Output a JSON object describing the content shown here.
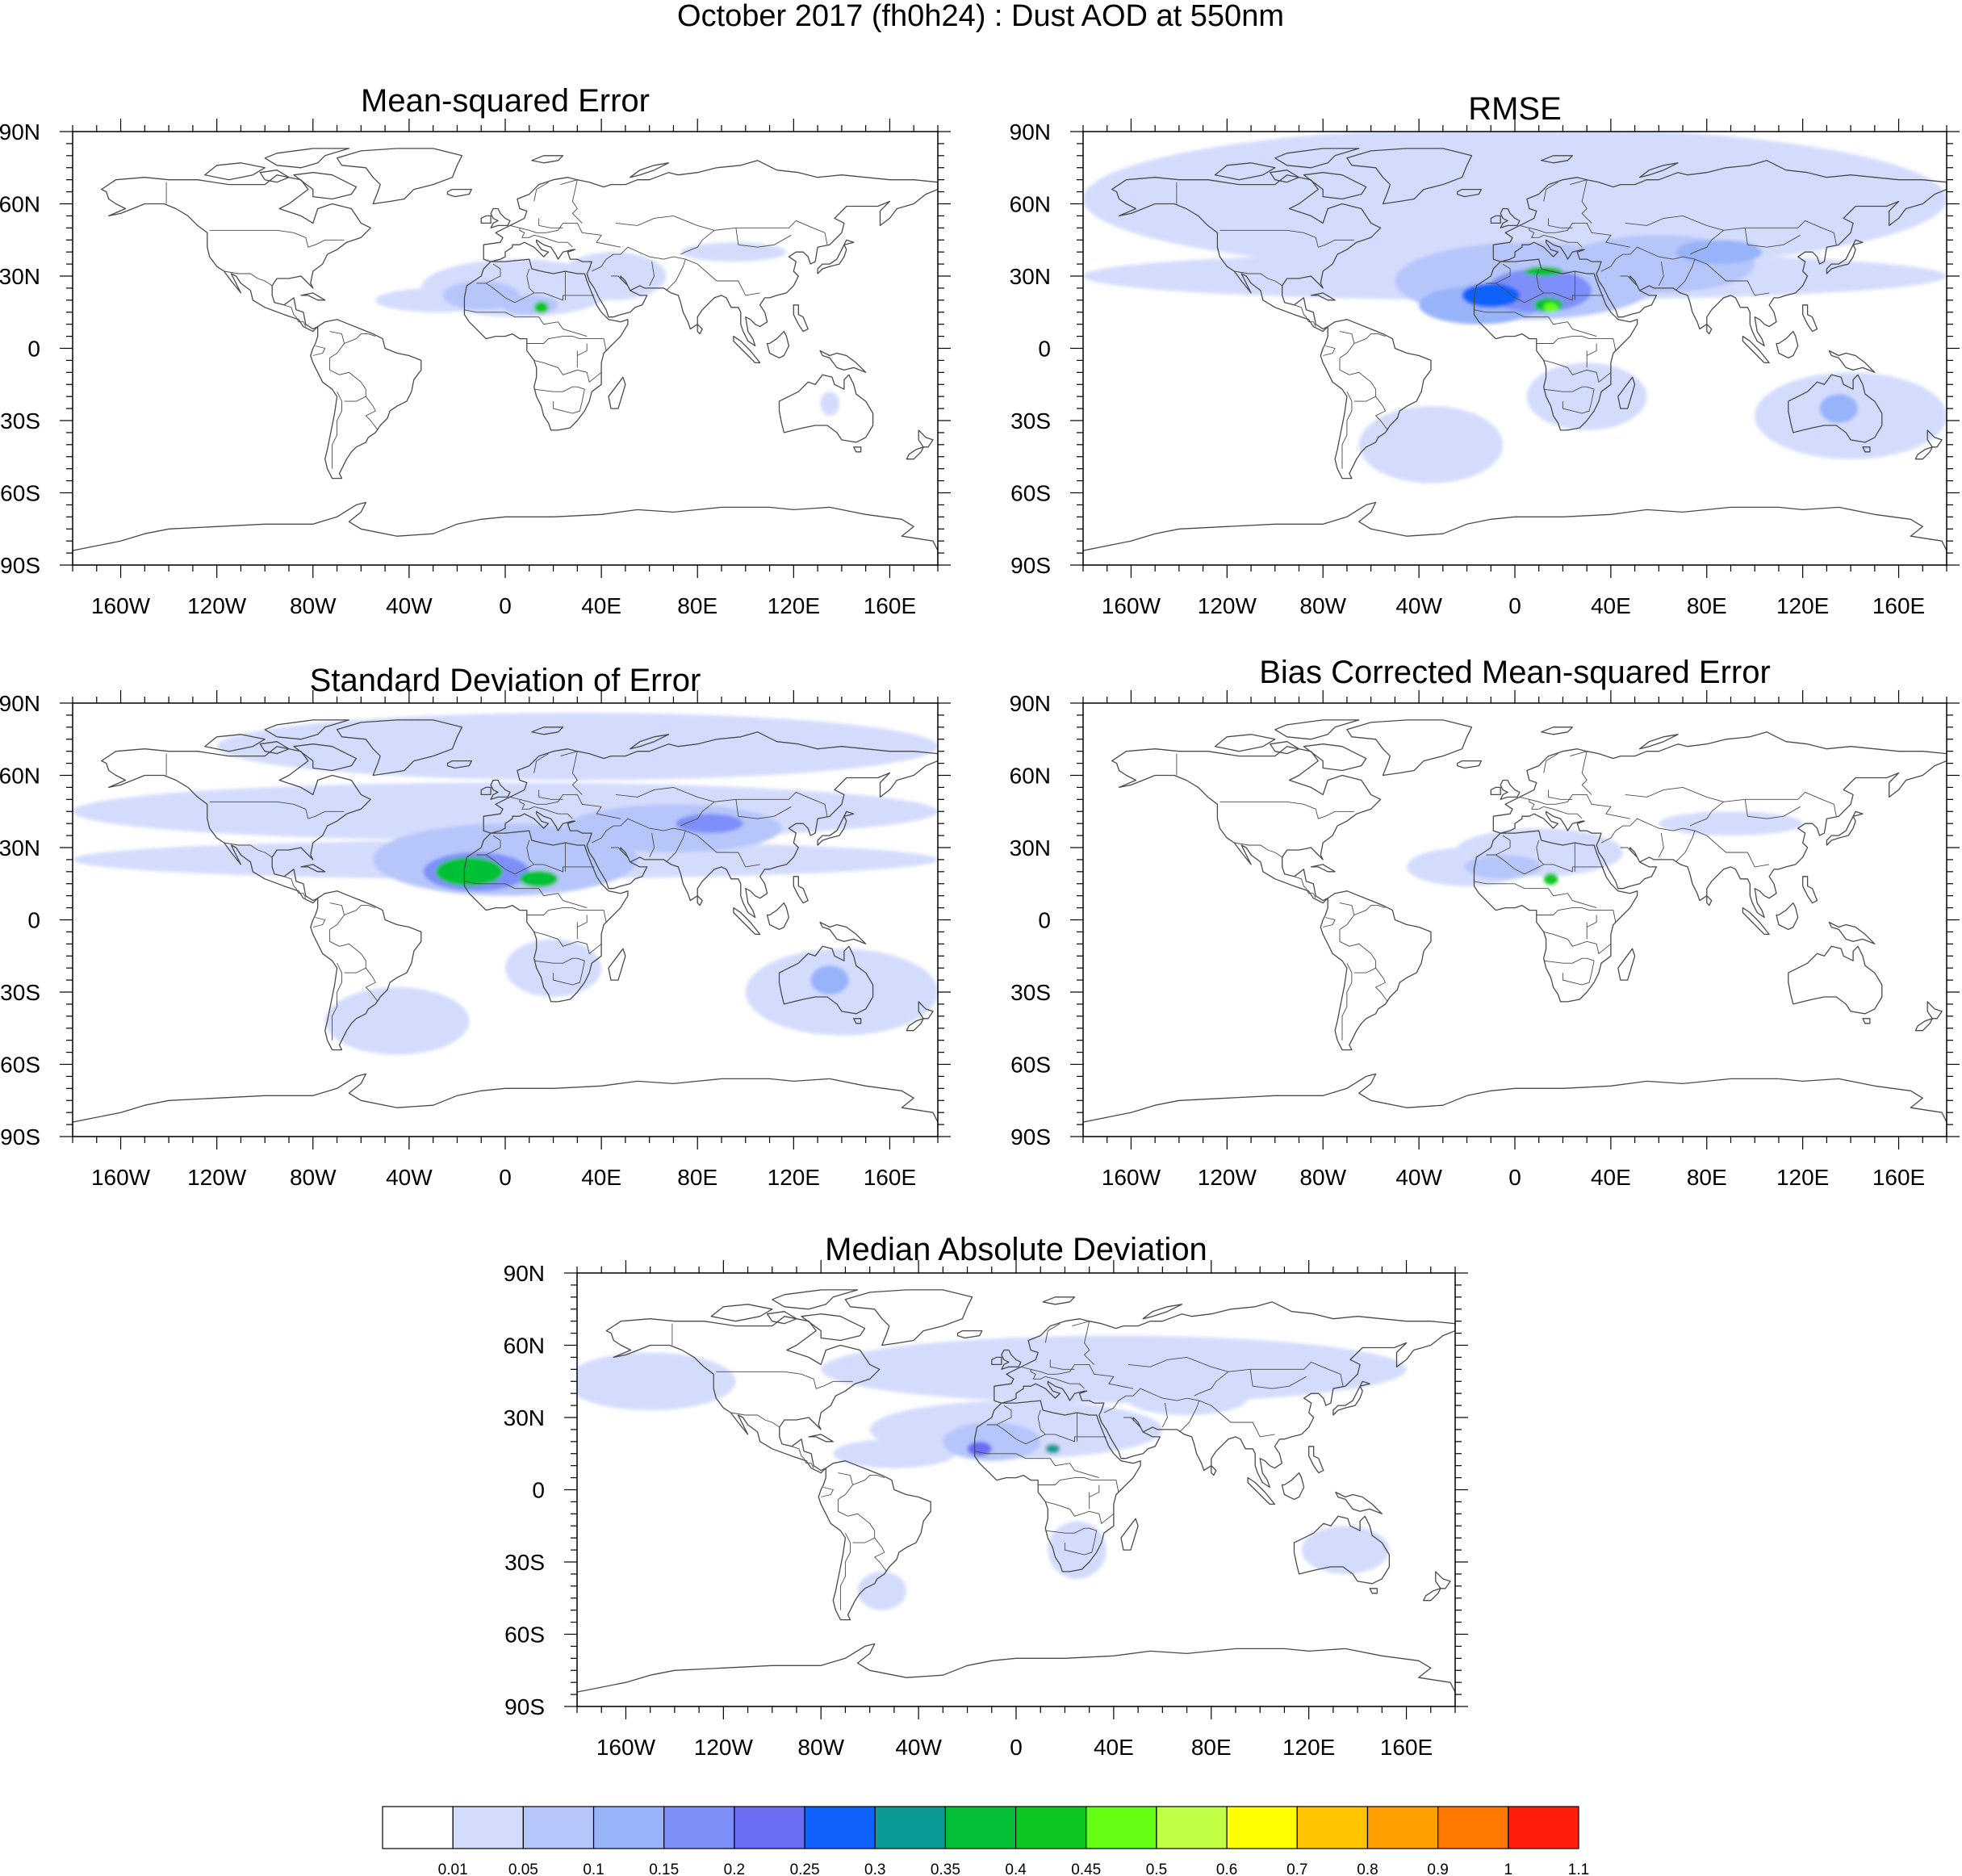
{
  "figure_title": "October 2017 (fh0h24) : Dust AOD at 550nm",
  "lat_ticks": [
    "90N",
    "60N",
    "30N",
    "0",
    "30S",
    "60S",
    "90S"
  ],
  "lon_ticks": [
    "160W",
    "120W",
    "80W",
    "40W",
    "0",
    "40E",
    "80E",
    "120E",
    "160E"
  ],
  "lat_tick_values": [
    90,
    60,
    30,
    0,
    -30,
    -60,
    -90
  ],
  "lon_tick_values": [
    -160,
    -120,
    -80,
    -40,
    0,
    40,
    80,
    120,
    160
  ],
  "panels": [
    {
      "id": "mse",
      "title": "Mean-squared Error",
      "blobs": [
        {
          "lon": -28,
          "lat": 20,
          "rlon": 26,
          "rlat": 5,
          "level": 1
        },
        {
          "lon": 5,
          "lat": 25,
          "rlon": 40,
          "rlat": 12,
          "level": 1
        },
        {
          "lon": 45,
          "lat": 30,
          "rlon": 22,
          "rlat": 10,
          "level": 1
        },
        {
          "lon": 95,
          "lat": 40,
          "rlon": 22,
          "rlat": 4,
          "level": 1
        },
        {
          "lon": 135,
          "lat": -23,
          "rlon": 4,
          "rlat": 5,
          "level": 1
        },
        {
          "lon": -10,
          "lat": 22,
          "rlon": 16,
          "rlat": 6,
          "level": 2
        },
        {
          "lon": 10,
          "lat": 18,
          "rlon": 12,
          "rlat": 4,
          "level": 2
        },
        {
          "lon": 15,
          "lat": 17,
          "rlon": 3,
          "rlat": 2.5,
          "level": 9
        }
      ]
    },
    {
      "id": "rmse",
      "title": "RMSE",
      "blobs": [
        {
          "lon": 0,
          "lat": 62,
          "rlon": 180,
          "rlat": 30,
          "level": 1
        },
        {
          "lon": 0,
          "lat": 30,
          "rlon": 180,
          "rlat": 10,
          "level": 1
        },
        {
          "lon": -35,
          "lat": -40,
          "rlon": 30,
          "rlat": 16,
          "level": 1
        },
        {
          "lon": 30,
          "lat": -20,
          "rlon": 25,
          "rlat": 14,
          "level": 1
        },
        {
          "lon": 140,
          "lat": -28,
          "rlon": 40,
          "rlat": 18,
          "level": 1
        },
        {
          "lon": 5,
          "lat": 28,
          "rlon": 55,
          "rlat": 16,
          "level": 2
        },
        {
          "lon": 60,
          "lat": 35,
          "rlon": 40,
          "rlat": 12,
          "level": 2
        },
        {
          "lon": -15,
          "lat": 18,
          "rlon": 25,
          "rlat": 8,
          "level": 3
        },
        {
          "lon": 85,
          "lat": 40,
          "rlon": 18,
          "rlat": 5,
          "level": 3
        },
        {
          "lon": 10,
          "lat": 24,
          "rlon": 22,
          "rlat": 9,
          "level": 4
        },
        {
          "lon": 135,
          "lat": -25,
          "rlon": 8,
          "rlat": 6,
          "level": 3
        },
        {
          "lon": -10,
          "lat": 22,
          "rlon": 12,
          "rlat": 5,
          "level": 6
        },
        {
          "lon": 14,
          "lat": 18,
          "rlon": 6,
          "rlat": 3,
          "level": 8
        },
        {
          "lon": 12,
          "lat": 32,
          "rlon": 8,
          "rlat": 2,
          "level": 8
        },
        {
          "lon": 15,
          "lat": 17,
          "rlon": 3,
          "rlat": 2,
          "level": 10
        }
      ]
    },
    {
      "id": "std",
      "title": "Standard Deviation of Error",
      "blobs": [
        {
          "lon": 30,
          "lat": 72,
          "rlon": 150,
          "rlat": 14,
          "level": 1
        },
        {
          "lon": 0,
          "lat": 45,
          "rlon": 180,
          "rlat": 12,
          "level": 1
        },
        {
          "lon": 0,
          "lat": 25,
          "rlon": 180,
          "rlat": 8,
          "level": 1
        },
        {
          "lon": -45,
          "lat": -42,
          "rlon": 30,
          "rlat": 14,
          "level": 1
        },
        {
          "lon": 140,
          "lat": -30,
          "rlon": 40,
          "rlat": 18,
          "level": 1
        },
        {
          "lon": 20,
          "lat": -20,
          "rlon": 20,
          "rlat": 12,
          "level": 1
        },
        {
          "lon": 0,
          "lat": 25,
          "rlon": 55,
          "rlat": 15,
          "level": 2
        },
        {
          "lon": 70,
          "lat": 38,
          "rlon": 45,
          "rlat": 10,
          "level": 2
        },
        {
          "lon": -12,
          "lat": 20,
          "rlon": 22,
          "rlat": 8,
          "level": 4
        },
        {
          "lon": 85,
          "lat": 40,
          "rlon": 14,
          "rlat": 4,
          "level": 4
        },
        {
          "lon": -15,
          "lat": 20,
          "rlon": 14,
          "rlat": 6,
          "level": 8
        },
        {
          "lon": 14,
          "lat": 17,
          "rlon": 8,
          "rlat": 3.5,
          "level": 8
        },
        {
          "lon": 135,
          "lat": -25,
          "rlon": 8,
          "rlat": 6,
          "level": 3
        }
      ]
    },
    {
      "id": "bcmse",
      "title": "Bias Corrected Mean-squared Error",
      "blobs": [
        {
          "lon": -20,
          "lat": 22,
          "rlon": 25,
          "rlat": 8,
          "level": 1
        },
        {
          "lon": 10,
          "lat": 28,
          "rlon": 35,
          "rlat": 10,
          "level": 1
        },
        {
          "lon": 90,
          "lat": 40,
          "rlon": 30,
          "rlat": 5,
          "level": 1
        },
        {
          "lon": -5,
          "lat": 22,
          "rlon": 16,
          "rlat": 5,
          "level": 2
        },
        {
          "lon": 15,
          "lat": 17,
          "rlon": 3,
          "rlat": 2.5,
          "level": 9
        }
      ]
    },
    {
      "id": "mad",
      "title": "Median Absolute Deviation",
      "blobs": [
        {
          "lon": 40,
          "lat": 50,
          "rlon": 120,
          "rlat": 14,
          "level": 1
        },
        {
          "lon": -150,
          "lat": 45,
          "rlon": 35,
          "rlat": 12,
          "level": 1
        },
        {
          "lon": 0,
          "lat": 25,
          "rlon": 60,
          "rlat": 12,
          "level": 1
        },
        {
          "lon": -50,
          "lat": 15,
          "rlon": 25,
          "rlat": 6,
          "level": 1
        },
        {
          "lon": 25,
          "lat": -25,
          "rlon": 12,
          "rlat": 12,
          "level": 1
        },
        {
          "lon": -55,
          "lat": -42,
          "rlon": 10,
          "rlat": 8,
          "level": 1
        },
        {
          "lon": 135,
          "lat": -25,
          "rlon": 18,
          "rlat": 10,
          "level": 1
        },
        {
          "lon": 70,
          "lat": 38,
          "rlon": 25,
          "rlat": 7,
          "level": 1
        },
        {
          "lon": -10,
          "lat": 20,
          "rlon": 20,
          "rlat": 8,
          "level": 2
        },
        {
          "lon": -15,
          "lat": 17,
          "rlon": 5,
          "rlat": 3,
          "level": 5
        },
        {
          "lon": 15,
          "lat": 17,
          "rlon": 3,
          "rlat": 2,
          "level": 7
        }
      ]
    }
  ],
  "colorbar": {
    "colors": [
      "#ffffff",
      "#d4dcfd",
      "#b6c6fb",
      "#97b3fa",
      "#7e8ffa",
      "#6b6df5",
      "#0f62fb",
      "#0b9b97",
      "#03c036",
      "#0fc722",
      "#65ff13",
      "#c0ff43",
      "#ffff00",
      "#ffc300",
      "#ffa000",
      "#ff7800",
      "#ff1e0c"
    ],
    "labels": [
      "0.01",
      "0.05",
      "0.1",
      "0.15",
      "0.2",
      "0.25",
      "0.3",
      "0.35",
      "0.4",
      "0.45",
      "0.5",
      "0.6",
      "0.7",
      "0.8",
      "0.9",
      "1",
      "1.1"
    ]
  },
  "colors": {
    "coast": "#4a4a4a",
    "frame": "#000000"
  }
}
